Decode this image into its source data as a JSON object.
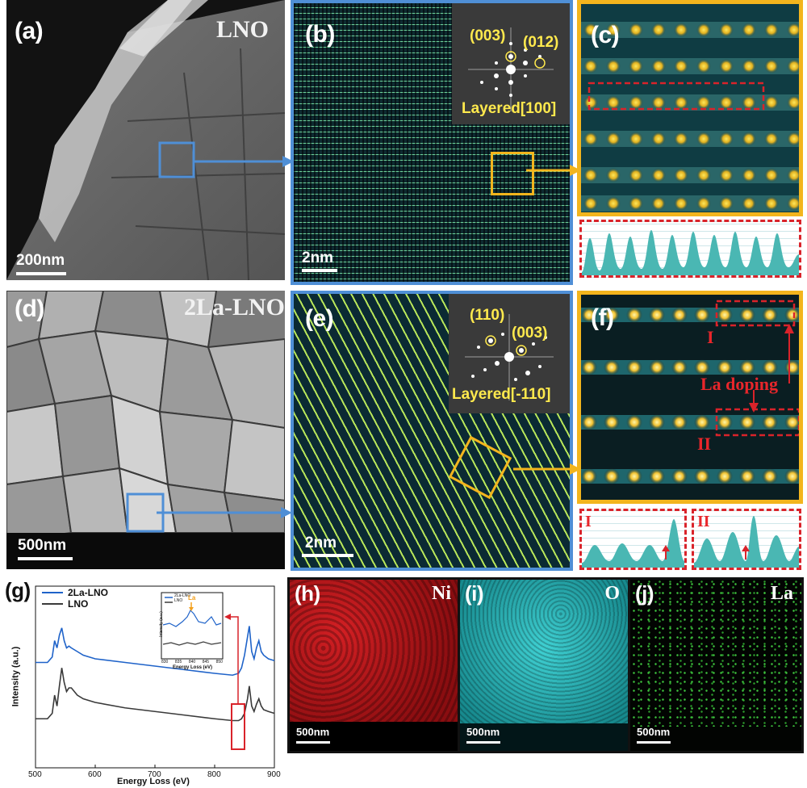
{
  "panels": {
    "a": {
      "label": "(a)",
      "material": "LNO",
      "scale": "200nm"
    },
    "b": {
      "label": "(b)",
      "scale": "2nm",
      "fft_spots": [
        "(003)",
        "(012)"
      ],
      "zone": "Layered[100]"
    },
    "c": {
      "label": "(c)"
    },
    "d": {
      "label": "(d)",
      "material": "2La-LNO",
      "scale": "500nm"
    },
    "e": {
      "label": "(e)",
      "scale": "2nm",
      "fft_spots": [
        "(110)",
        "(003)"
      ],
      "zone": "Layered[-110]"
    },
    "f": {
      "label": "(f)",
      "region_I": "I",
      "region_II": "II",
      "annotation": "La doping"
    },
    "g": {
      "label": "(g)"
    },
    "h": {
      "label": "(h)",
      "element": "Ni",
      "scale": "500nm"
    },
    "i": {
      "label": "(i)",
      "element": "O",
      "scale": "500nm"
    },
    "j": {
      "label": "(j)",
      "element": "La",
      "scale": "500nm"
    }
  },
  "profiles": {
    "I": "I",
    "II": "II"
  },
  "colors": {
    "blue_box": "#4f8fd6",
    "yellow_box": "#f3b51d",
    "red_dash": "#d9232a",
    "ni": "#c8161c",
    "o": "#1fb3b8",
    "la": "#3ec43e"
  },
  "chart_data": {
    "type": "line",
    "xlabel": "Energy Loss (eV)",
    "ylabel": "Intensity (a.u.)",
    "xlim": [
      500,
      900
    ],
    "xticks": [
      "500",
      "600",
      "700",
      "800",
      "900"
    ],
    "legend_position": "top-left",
    "series": [
      {
        "name": "2La-LNO",
        "color": "#1f63c9",
        "x": [
          500,
          520,
          528,
          532,
          536,
          540,
          544,
          548,
          552,
          556,
          560,
          570,
          580,
          600,
          650,
          700,
          750,
          800,
          830,
          840,
          845,
          850,
          855,
          858,
          862,
          866,
          870,
          874,
          878,
          882,
          890,
          900
        ],
        "y": [
          0.58,
          0.58,
          0.61,
          0.7,
          0.66,
          0.73,
          0.77,
          0.7,
          0.66,
          0.67,
          0.66,
          0.64,
          0.62,
          0.6,
          0.58,
          0.56,
          0.54,
          0.52,
          0.51,
          0.52,
          0.55,
          0.62,
          0.72,
          0.78,
          0.64,
          0.6,
          0.66,
          0.7,
          0.64,
          0.62,
          0.6,
          0.59
        ]
      },
      {
        "name": "LNO",
        "color": "#3a3a3a",
        "x": [
          500,
          520,
          528,
          532,
          536,
          540,
          544,
          548,
          552,
          556,
          560,
          570,
          580,
          600,
          650,
          700,
          750,
          800,
          830,
          840,
          845,
          850,
          855,
          858,
          862,
          866,
          870,
          874,
          878,
          882,
          890,
          900
        ],
        "y": [
          0.27,
          0.27,
          0.3,
          0.4,
          0.34,
          0.45,
          0.55,
          0.47,
          0.42,
          0.44,
          0.44,
          0.4,
          0.38,
          0.36,
          0.33,
          0.31,
          0.29,
          0.27,
          0.26,
          0.26,
          0.27,
          0.3,
          0.38,
          0.45,
          0.34,
          0.31,
          0.35,
          0.38,
          0.34,
          0.32,
          0.31,
          0.3
        ]
      }
    ],
    "inset": {
      "xlabel": "Energy Loss (eV)",
      "ylabel": "Intensity (a.u.)",
      "xticks": [
        "830",
        "835",
        "840",
        "845",
        "850"
      ],
      "legend": [
        "2La-LNO",
        "LNO"
      ],
      "annotation": "La"
    }
  }
}
